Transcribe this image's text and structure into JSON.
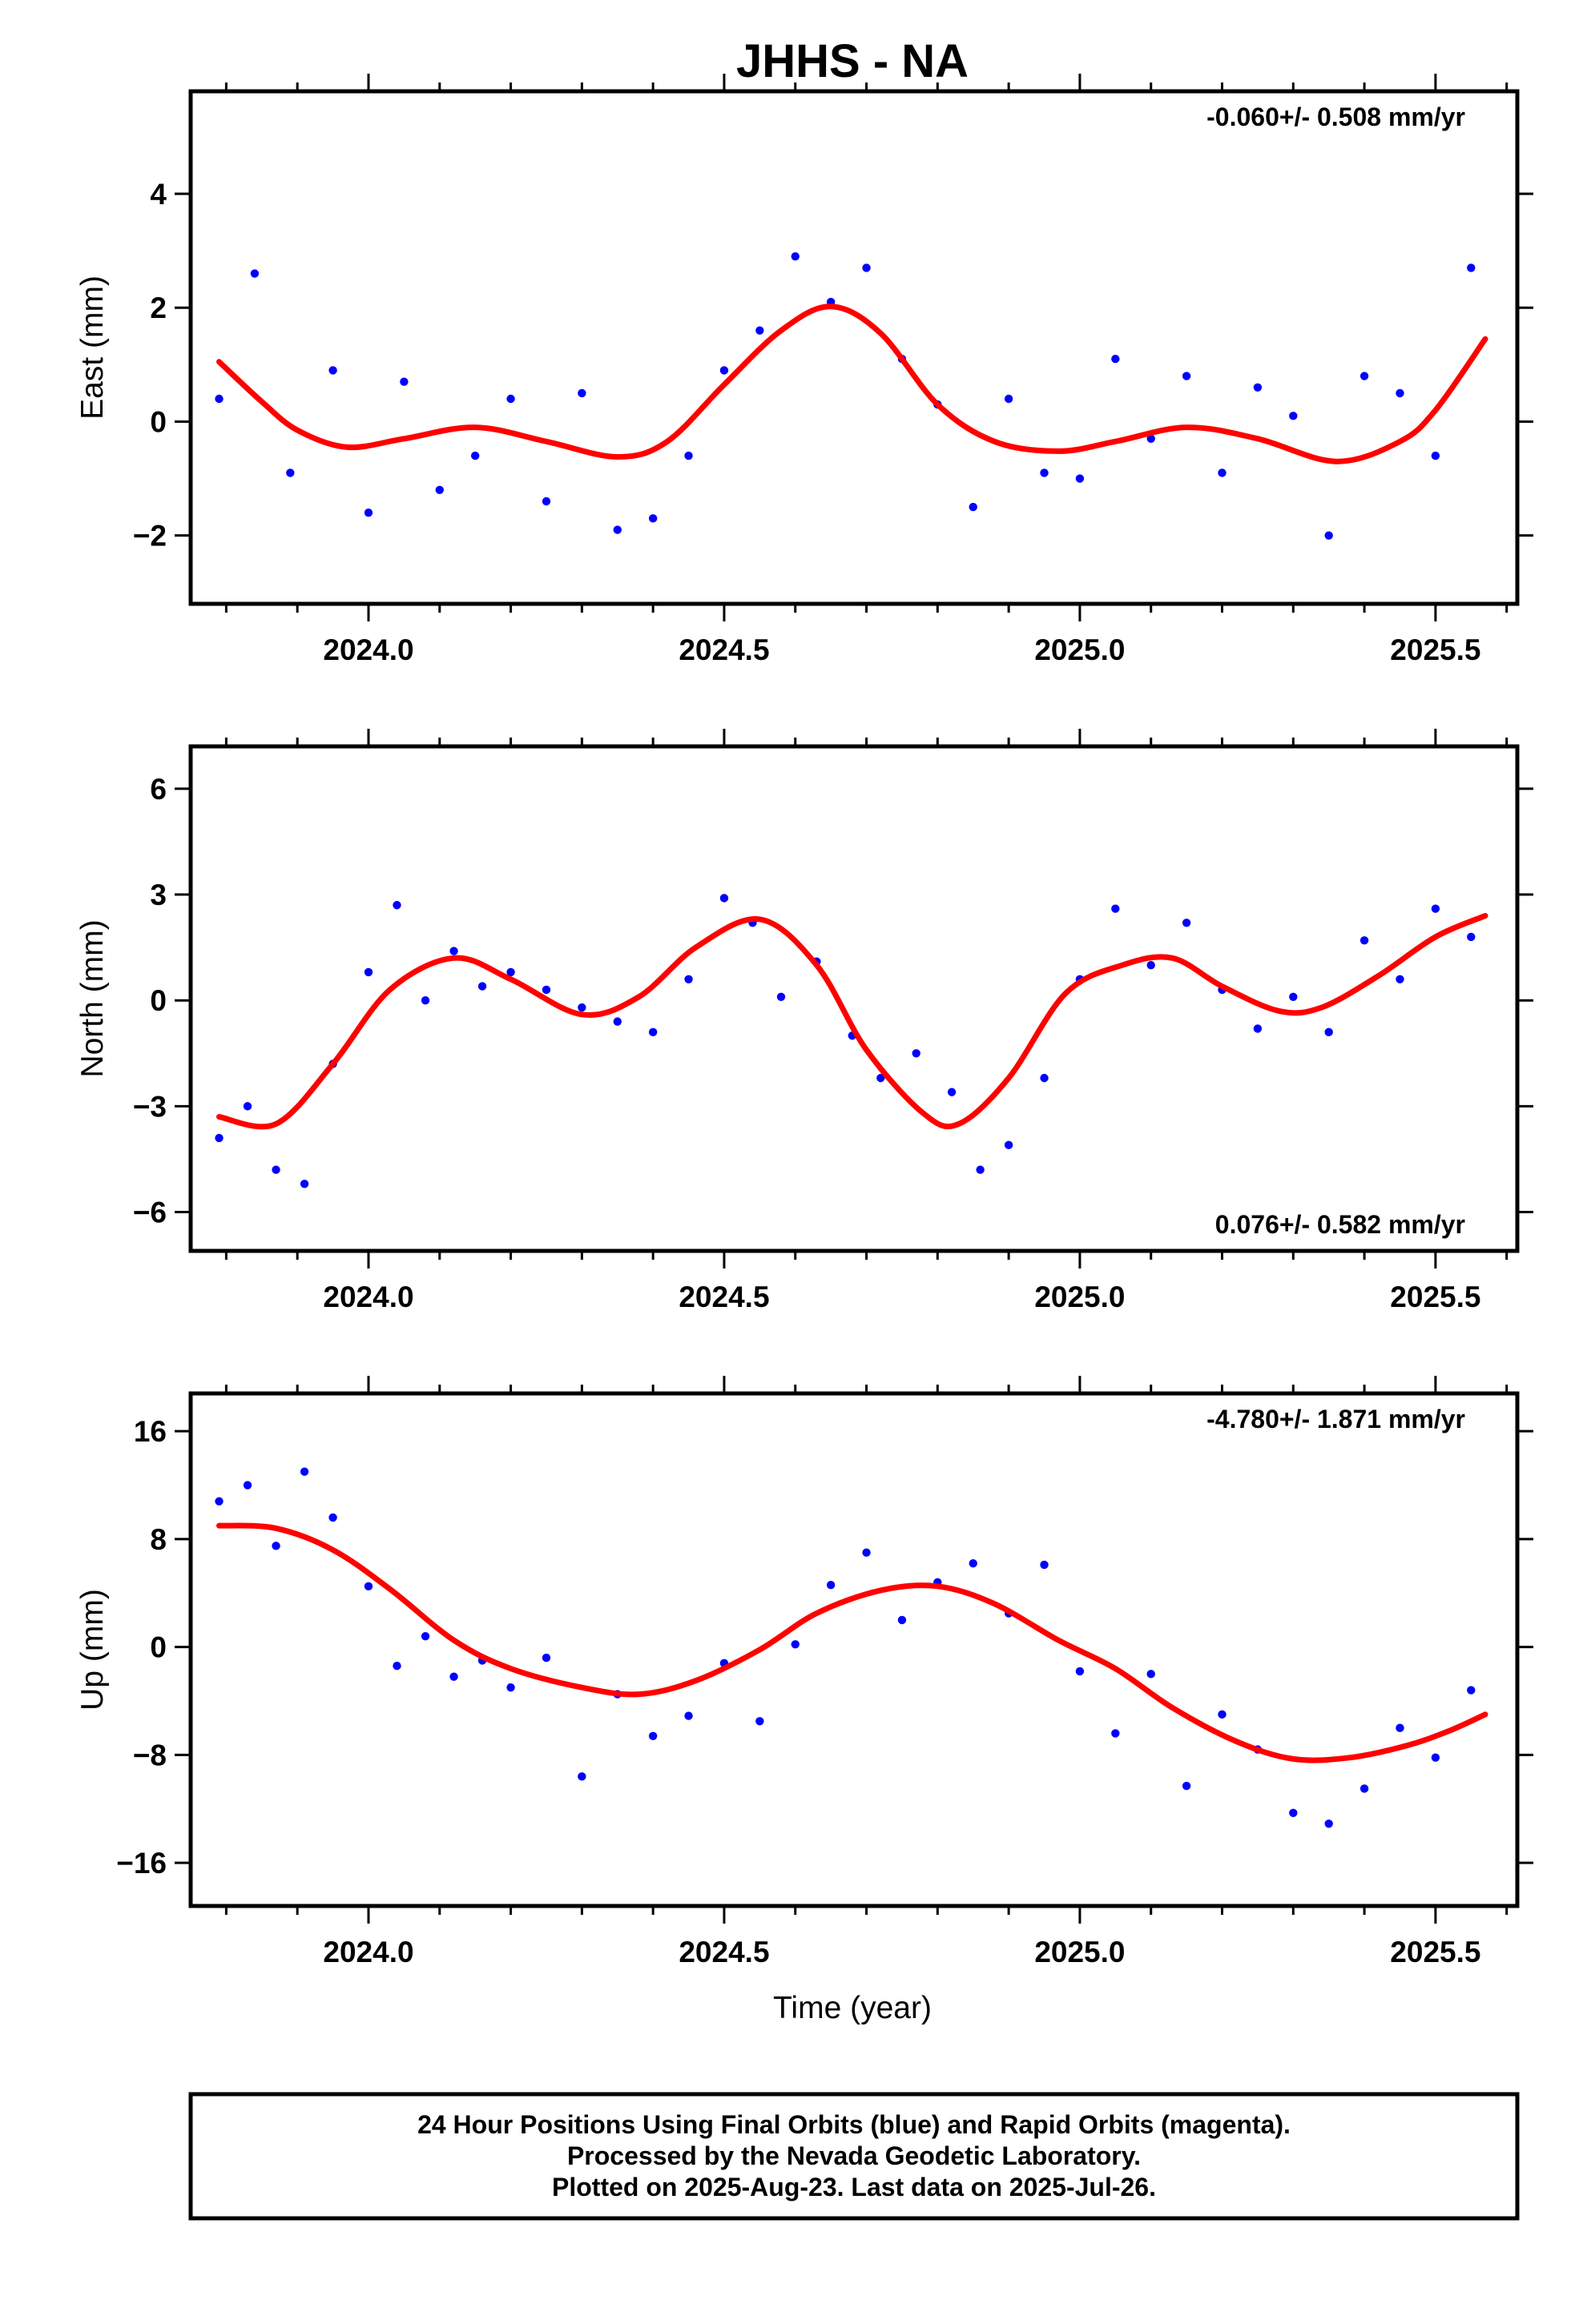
{
  "figure": {
    "title": "JHHS - NA",
    "xlabel": "Time (year)",
    "footer": [
      "24 Hour Positions Using Final Orbits (blue) and Rapid Orbits (magenta).",
      "Processed by the Nevada Geodetic Laboratory.",
      "Plotted on 2025-Aug-23. Last data on 2025-Jul-26."
    ],
    "colors": {
      "final_orbits": "#0000ff",
      "rapid_orbits": "#ff00ff",
      "model_fit": "#ff0000",
      "frame": "#000000"
    }
  },
  "chart_data": [
    {
      "type": "scatter",
      "ylabel": "East (mm)",
      "rate": "-0.060+/- 0.508 mm/yr",
      "rate_position": "top-right",
      "xlim": [
        2023.75,
        2025.615
      ],
      "ylim": [
        -3.2,
        5.8
      ],
      "xticks": [
        2024.0,
        2024.5,
        2025.0,
        2025.5
      ],
      "xtick_labels": [
        "2024.0",
        "2024.5",
        "2025.0",
        "2025.5"
      ],
      "yticks": [
        -2,
        0,
        2,
        4
      ],
      "ytick_labels": [
        "−2",
        "0",
        "2",
        "4"
      ],
      "grid": false,
      "series": [
        {
          "role": "daily_positions",
          "color": "#0000ff",
          "x": [
            2023.79,
            2023.84,
            2023.89,
            2023.95,
            2024.0,
            2024.05,
            2024.1,
            2024.15,
            2024.2,
            2024.25,
            2024.3,
            2024.35,
            2024.4,
            2024.45,
            2024.5,
            2024.55,
            2024.6,
            2024.65,
            2024.7,
            2024.75,
            2024.8,
            2024.85,
            2024.9,
            2024.95,
            2025.0,
            2025.05,
            2025.1,
            2025.15,
            2025.2,
            2025.25,
            2025.3,
            2025.35,
            2025.4,
            2025.45,
            2025.5,
            2025.55
          ],
          "y": [
            0.4,
            2.6,
            -0.9,
            0.9,
            -1.6,
            0.7,
            -1.2,
            -0.6,
            0.4,
            -1.4,
            0.5,
            -1.9,
            -1.7,
            -0.6,
            0.9,
            1.6,
            2.9,
            2.1,
            2.7,
            1.1,
            0.3,
            -1.5,
            0.4,
            -0.9,
            -1.0,
            1.1,
            -0.3,
            0.8,
            -0.9,
            0.6,
            0.1,
            -2.0,
            0.8,
            0.5,
            -0.6,
            2.7
          ]
        },
        {
          "role": "model_fit",
          "color": "#ff0000",
          "x": [
            2023.79,
            2023.85,
            2023.9,
            2023.97,
            2024.05,
            2024.15,
            2024.25,
            2024.35,
            2024.42,
            2024.5,
            2024.58,
            2024.65,
            2024.72,
            2024.8,
            2024.88,
            2024.97,
            2025.05,
            2025.15,
            2025.25,
            2025.36,
            2025.45,
            2025.5,
            2025.57
          ],
          "y": [
            1.05,
            0.35,
            -0.15,
            -0.45,
            -0.3,
            -0.1,
            -0.35,
            -0.62,
            -0.35,
            0.65,
            1.6,
            2.02,
            1.55,
            0.3,
            -0.35,
            -0.52,
            -0.35,
            -0.1,
            -0.3,
            -0.7,
            -0.35,
            0.2,
            1.45
          ]
        }
      ]
    },
    {
      "type": "scatter",
      "ylabel": "North (mm)",
      "rate": "0.076+/- 0.582 mm/yr",
      "rate_position": "bottom-right",
      "xlim": [
        2023.75,
        2025.615
      ],
      "ylim": [
        -7.1,
        7.2
      ],
      "xticks": [
        2024.0,
        2024.5,
        2025.0,
        2025.5
      ],
      "xtick_labels": [
        "2024.0",
        "2024.5",
        "2025.0",
        "2025.5"
      ],
      "yticks": [
        -6,
        -3,
        0,
        3,
        6
      ],
      "ytick_labels": [
        "−6",
        "−3",
        "0",
        "3",
        "6"
      ],
      "grid": false,
      "series": [
        {
          "role": "daily_positions",
          "color": "#0000ff",
          "x": [
            2023.79,
            2023.83,
            2023.87,
            2023.91,
            2023.95,
            2024.0,
            2024.04,
            2024.08,
            2024.12,
            2024.16,
            2024.2,
            2024.25,
            2024.3,
            2024.35,
            2024.4,
            2024.45,
            2024.5,
            2024.54,
            2024.58,
            2024.63,
            2024.68,
            2024.72,
            2024.77,
            2024.82,
            2024.86,
            2024.9,
            2024.95,
            2025.0,
            2025.05,
            2025.1,
            2025.15,
            2025.2,
            2025.25,
            2025.3,
            2025.35,
            2025.4,
            2025.45,
            2025.5,
            2025.55
          ],
          "y": [
            -3.9,
            -3.0,
            -4.8,
            -5.2,
            -1.8,
            0.8,
            2.7,
            0.0,
            1.4,
            0.4,
            0.8,
            0.3,
            -0.2,
            -0.6,
            -0.9,
            0.6,
            2.9,
            2.2,
            0.1,
            1.1,
            -1.0,
            -2.2,
            -1.5,
            -2.6,
            -4.8,
            -4.1,
            -2.2,
            0.6,
            2.6,
            1.0,
            2.2,
            0.3,
            -0.8,
            0.1,
            -0.9,
            1.7,
            0.6,
            2.6,
            1.8
          ]
        },
        {
          "role": "model_fit",
          "color": "#ff0000",
          "x": [
            2023.79,
            2023.87,
            2023.95,
            2024.03,
            2024.12,
            2024.2,
            2024.3,
            2024.38,
            2024.46,
            2024.55,
            2024.63,
            2024.7,
            2024.78,
            2024.83,
            2024.9,
            2024.98,
            2025.06,
            2025.13,
            2025.2,
            2025.28,
            2025.34,
            2025.42,
            2025.5,
            2025.57
          ],
          "y": [
            -3.3,
            -3.5,
            -1.8,
            0.3,
            1.2,
            0.6,
            -0.4,
            0.1,
            1.5,
            2.3,
            1.0,
            -1.4,
            -3.2,
            -3.5,
            -2.2,
            0.2,
            1.0,
            1.2,
            0.4,
            -0.3,
            -0.2,
            0.7,
            1.8,
            2.4
          ]
        }
      ]
    },
    {
      "type": "scatter",
      "ylabel": "Up (mm)",
      "rate": "-4.780+/- 1.871 mm/yr",
      "rate_position": "top-right",
      "xlim": [
        2023.75,
        2025.615
      ],
      "ylim": [
        -19.2,
        18.8
      ],
      "xticks": [
        2024.0,
        2024.5,
        2025.0,
        2025.5
      ],
      "xtick_labels": [
        "2024.0",
        "2024.5",
        "2025.0",
        "2025.5"
      ],
      "yticks": [
        -16,
        -8,
        0,
        8,
        16
      ],
      "ytick_labels": [
        "−16",
        "−8",
        "0",
        "8",
        "16"
      ],
      "grid": false,
      "series": [
        {
          "role": "daily_positions",
          "color": "#0000ff",
          "x": [
            2023.79,
            2023.83,
            2023.87,
            2023.91,
            2023.95,
            2024.0,
            2024.04,
            2024.08,
            2024.12,
            2024.16,
            2024.2,
            2024.25,
            2024.3,
            2024.35,
            2024.4,
            2024.45,
            2024.5,
            2024.55,
            2024.6,
            2024.65,
            2024.7,
            2024.75,
            2024.8,
            2024.85,
            2024.9,
            2024.95,
            2025.0,
            2025.05,
            2025.1,
            2025.15,
            2025.2,
            2025.25,
            2025.3,
            2025.35,
            2025.4,
            2025.45,
            2025.5,
            2025.55
          ],
          "y": [
            10.8,
            12.0,
            7.5,
            13.0,
            9.6,
            4.5,
            -1.4,
            0.8,
            -2.2,
            -1.0,
            -3.0,
            -0.8,
            -9.6,
            -3.5,
            -6.6,
            -5.1,
            -1.2,
            -5.5,
            0.2,
            4.6,
            7.0,
            2.0,
            4.8,
            6.2,
            2.5,
            6.1,
            -1.8,
            -6.4,
            -2.0,
            -10.3,
            -5.0,
            -7.6,
            -12.3,
            -13.1,
            -10.5,
            -6.0,
            -8.2,
            -3.2
          ]
        },
        {
          "role": "model_fit",
          "color": "#ff0000",
          "x": [
            2023.79,
            2023.87,
            2023.95,
            2024.03,
            2024.12,
            2024.2,
            2024.3,
            2024.38,
            2024.46,
            2024.55,
            2024.63,
            2024.72,
            2024.8,
            2024.88,
            2024.97,
            2025.05,
            2025.13,
            2025.22,
            2025.3,
            2025.38,
            2025.46,
            2025.52,
            2025.57
          ],
          "y": [
            9.0,
            8.8,
            7.2,
            4.3,
            0.5,
            -1.6,
            -3.0,
            -3.5,
            -2.5,
            -0.2,
            2.5,
            4.2,
            4.5,
            3.2,
            0.5,
            -1.6,
            -4.5,
            -7.0,
            -8.3,
            -8.2,
            -7.3,
            -6.2,
            -5.0
          ]
        }
      ]
    }
  ]
}
